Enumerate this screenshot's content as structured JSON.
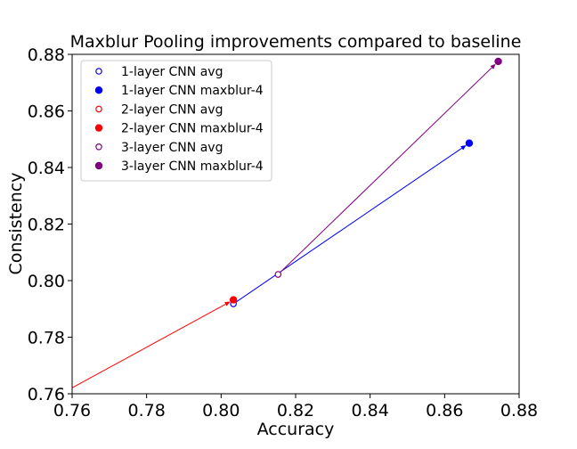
{
  "chart_data": {
    "type": "scatter",
    "title": "Maxblur Pooling improvements compared to baseline",
    "xlabel": "Accuracy",
    "ylabel": "Consistency",
    "xlim": [
      0.76,
      0.88
    ],
    "ylim": [
      0.76,
      0.88
    ],
    "xticks": [
      "0.76",
      "0.78",
      "0.80",
      "0.82",
      "0.84",
      "0.86",
      "0.88"
    ],
    "yticks": [
      "0.76",
      "0.78",
      "0.80",
      "0.82",
      "0.84",
      "0.86",
      "0.88"
    ],
    "grid": false,
    "legend_position": "top-left",
    "series": [
      {
        "name": "1-layer CNN avg",
        "color": "#0000ff",
        "marker": "hollow-circle",
        "x": 0.8033,
        "y": 0.7918
      },
      {
        "name": "1-layer CNN maxblur-4",
        "color": "#0000ff",
        "marker": "filled-circle",
        "x": 0.8666,
        "y": 0.8486
      },
      {
        "name": "2-layer CNN avg",
        "color": "#ff0000",
        "marker": "hollow-circle",
        "x": 0.7589,
        "y": 0.7613
      },
      {
        "name": "2-layer CNN maxblur-4",
        "color": "#ff0000",
        "marker": "filled-circle",
        "x": 0.8033,
        "y": 0.7932
      },
      {
        "name": "3-layer CNN avg",
        "color": "#800080",
        "marker": "hollow-circle",
        "x": 0.8153,
        "y": 0.8022
      },
      {
        "name": "3-layer CNN maxblur-4",
        "color": "#800080",
        "marker": "filled-circle",
        "x": 0.8744,
        "y": 0.8775
      }
    ],
    "arrows": [
      {
        "color": "#ff0000",
        "from": [
          0.7589,
          0.7613
        ],
        "to": [
          0.8033,
          0.7932
        ]
      },
      {
        "color": "#0000ff",
        "from": [
          0.8033,
          0.7918
        ],
        "to": [
          0.8666,
          0.8486
        ]
      },
      {
        "color": "#800080",
        "from": [
          0.8153,
          0.8022
        ],
        "to": [
          0.8744,
          0.8775
        ]
      }
    ]
  }
}
